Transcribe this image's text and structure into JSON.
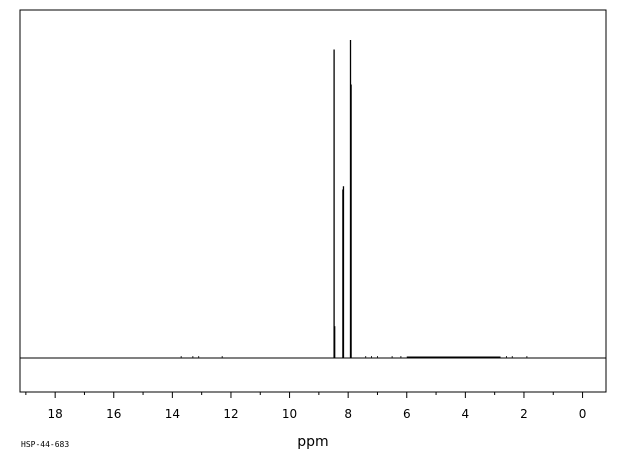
{
  "chart_data": {
    "type": "line",
    "title": "",
    "xlabel": "ppm",
    "ylabel": "",
    "xlim": [
      19.2,
      -0.8
    ],
    "x_reversed": true,
    "x_ticks": [
      18,
      16,
      14,
      12,
      10,
      8,
      6,
      4,
      2,
      0
    ],
    "x_minor_step": 1,
    "grid": false,
    "baseline": 0,
    "ylim": [
      -0.1,
      1.0
    ],
    "series": [
      {
        "peaks": [
          {
            "x": 8.48,
            "y": 0.97
          },
          {
            "x": 8.46,
            "y": 0.1
          },
          {
            "x": 8.18,
            "y": 0.53
          },
          {
            "x": 8.16,
            "y": 0.54
          },
          {
            "x": 7.92,
            "y": 1.0
          },
          {
            "x": 7.9,
            "y": 0.86
          }
        ],
        "noise": [
          {
            "x": 13.7,
            "y": 0.004
          },
          {
            "x": 13.3,
            "y": 0.005
          },
          {
            "x": 13.1,
            "y": 0.004
          },
          {
            "x": 12.3,
            "y": 0.005
          },
          {
            "x": 7.4,
            "y": 0.004
          },
          {
            "x": 7.2,
            "y": 0.004
          },
          {
            "x": 7.0,
            "y": 0.005
          },
          {
            "x": 6.5,
            "y": 0.006
          },
          {
            "x": 6.2,
            "y": 0.005
          },
          {
            "x": 2.6,
            "y": 0.004
          },
          {
            "x": 2.4,
            "y": 0.004
          },
          {
            "x": 1.9,
            "y": 0.005
          }
        ],
        "hump": {
          "x_start": 6.0,
          "x_end": 2.8,
          "y": 0.004
        }
      }
    ]
  },
  "footer": {
    "code": "HSP-44-683"
  }
}
